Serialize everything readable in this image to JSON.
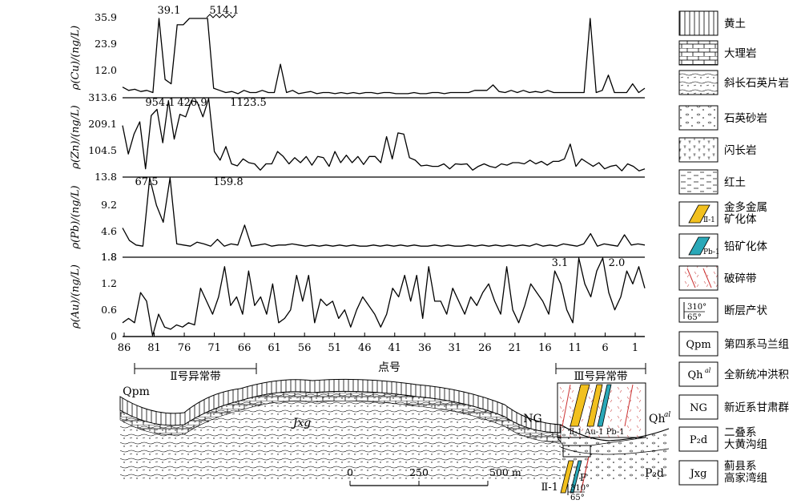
{
  "chart_data": {
    "type": "line",
    "xlabel": "点号",
    "x_ticks": [
      "86",
      "81",
      "76",
      "71",
      "66",
      "61",
      "56",
      "51",
      "46",
      "41",
      "36",
      "31",
      "26",
      "21",
      "16",
      "11",
      "6",
      "1"
    ],
    "panels": [
      {
        "id": "cu",
        "ylabel": "ρ(Cu)/(ng/L)",
        "y_ticks": [
          "35.9",
          "23.9",
          "12.0"
        ],
        "ylim": [
          0,
          35.9
        ],
        "annotations": [
          {
            "text": "39.1"
          },
          {
            "text": "514.1"
          }
        ],
        "values": [
          4.5,
          3,
          3.5,
          2.5,
          3,
          2,
          35.9,
          8,
          6,
          33,
          33,
          35.9,
          35.9,
          35.9,
          35.9,
          4,
          3,
          2,
          2.5,
          1.5,
          3,
          2,
          2,
          3,
          2,
          2,
          15,
          2,
          3,
          1.5,
          2,
          2.5,
          1.5,
          2,
          2,
          1.5,
          2,
          1.5,
          2,
          1.5,
          2,
          2,
          1.5,
          2,
          2,
          1.5,
          1.5,
          1.5,
          2,
          1.5,
          1.5,
          2,
          2,
          1.5,
          2,
          2,
          2,
          2,
          3,
          3,
          3,
          5.5,
          2.5,
          2,
          3,
          2,
          3,
          2,
          2.5,
          2,
          3,
          2,
          2,
          2,
          2,
          2,
          2,
          35.9,
          2,
          3,
          10,
          2,
          2,
          2,
          6,
          2,
          4
        ]
      },
      {
        "id": "zn",
        "ylabel": "ρ(Zn)/(ng/L)",
        "y_ticks": [
          "313.6",
          "209.1",
          "104.5"
        ],
        "ylim": [
          0,
          313.6
        ],
        "annotations": [
          {
            "text": "954.1"
          },
          {
            "text": "420.9"
          },
          {
            "text": "1123.5"
          }
        ],
        "values": [
          205,
          90,
          170,
          220,
          30,
          245,
          270,
          135,
          305,
          150,
          250,
          240,
          305,
          300,
          240,
          313.6,
          100,
          65,
          120,
          50,
          42,
          70,
          55,
          50,
          25,
          50,
          50,
          100,
          80,
          50,
          75,
          55,
          80,
          45,
          80,
          75,
          40,
          100,
          55,
          85,
          55,
          80,
          48,
          80,
          80,
          55,
          160,
          70,
          175,
          170,
          75,
          65,
          42,
          45,
          40,
          40,
          50,
          30,
          50,
          48,
          50,
          25,
          40,
          50,
          40,
          35,
          50,
          45,
          55,
          55,
          50,
          65,
          50,
          60,
          45,
          60,
          60,
          70,
          130,
          40,
          70,
          55,
          40,
          55,
          30,
          40,
          45,
          22,
          50,
          40,
          22,
          30
        ]
      },
      {
        "id": "pb",
        "ylabel": "ρ(Pb)/(ng/L)",
        "y_ticks": [
          "13.8",
          "9.2",
          "4.6",
          "1.8"
        ],
        "ylim": [
          0,
          13.8
        ],
        "annotations": [
          {
            "text": "67.5"
          },
          {
            "text": "159.8"
          }
        ],
        "values": [
          5,
          2.8,
          2,
          1.8,
          13.8,
          9,
          6,
          13.8,
          2.2,
          2,
          1.8,
          2.5,
          2.2,
          1.8,
          3,
          1.8,
          2.2,
          2,
          5.5,
          1.8,
          2,
          2.2,
          1.8,
          2,
          2,
          2.2,
          2,
          1.8,
          2,
          1.8,
          2,
          1.8,
          2,
          1.8,
          2,
          1.8,
          1.8,
          2,
          1.8,
          2,
          1.8,
          2,
          1.8,
          2,
          1.8,
          1.8,
          2,
          1.8,
          2,
          1.8,
          1.8,
          2,
          1.8,
          2,
          1.8,
          2,
          1.8,
          2,
          1.8,
          2,
          1.8,
          2.2,
          1.8,
          2,
          1.8,
          2.2,
          2,
          1.8,
          2.2,
          4,
          1.8,
          2.2,
          2,
          1.8,
          3.8,
          2,
          2.2,
          2
        ]
      },
      {
        "id": "au",
        "ylabel": "ρ(Au)/(ng/L)",
        "y_ticks": [
          "1.8",
          "1.2",
          "0.6",
          "0"
        ],
        "ylim": [
          0,
          1.8
        ],
        "annotations": [
          {
            "text": "3.1"
          },
          {
            "text": "2.0"
          }
        ],
        "values": [
          0.3,
          0.4,
          0.3,
          1,
          0.8,
          0,
          0.5,
          0.2,
          0.15,
          0.25,
          0.2,
          0.3,
          0.25,
          1.1,
          0.8,
          0.5,
          0.9,
          1.6,
          0.7,
          0.9,
          0.5,
          1.5,
          0.7,
          0.9,
          0.5,
          1.2,
          0.3,
          0.4,
          0.6,
          1.4,
          0.8,
          1.4,
          0.3,
          0.85,
          0.7,
          0.8,
          0.4,
          0.6,
          0.2,
          0.6,
          0.9,
          0.7,
          0.5,
          0.2,
          0.5,
          1.1,
          0.9,
          1.4,
          0.8,
          1.4,
          0.4,
          1.6,
          0.8,
          0.8,
          0.5,
          1.1,
          0.8,
          0.5,
          0.9,
          0.7,
          1.0,
          1.2,
          0.8,
          0.5,
          1.6,
          0.6,
          0.3,
          0.7,
          1.2,
          1.0,
          0.8,
          0.5,
          1.5,
          1.2,
          0.6,
          0.3,
          1.8,
          1.2,
          0.9,
          1.5,
          1.8,
          1.0,
          0.6,
          0.9,
          1.5,
          1.2,
          1.6,
          1.1
        ]
      }
    ],
    "anomaly_zones": [
      {
        "label": "Ⅱ号异常带"
      },
      {
        "label": "Ⅲ号异常带"
      }
    ],
    "section": {
      "labels": {
        "qpm": "Qpm",
        "jxg": "Jxg",
        "ng": "NG",
        "qhal": "Qh",
        "qhal_sup": "al",
        "p2d": "P₂d",
        "f": "F",
        "ii1_bottom": "Ⅱ-1",
        "orient_top": "310°",
        "orient_bot": "65°",
        "inset_labels": "Ⅱ-1 Au-1 Pb-1"
      },
      "scale_bar": {
        "ticks": [
          "0",
          "250",
          "500 m"
        ]
      }
    },
    "legend": [
      {
        "label": "黄土",
        "pattern": "loess"
      },
      {
        "label": "大理岩",
        "pattern": "marble"
      },
      {
        "label": "斜长石英片岩",
        "pattern": "schist"
      },
      {
        "label": "石英砂岩",
        "pattern": "sandstone"
      },
      {
        "label": "闪长岩",
        "pattern": "diorite"
      },
      {
        "label": "红土",
        "pattern": "redsoil"
      },
      {
        "label": "金多金属\n矿化体",
        "pattern": "au",
        "tag": "Ⅱ-1",
        "color": "#f2c01e"
      },
      {
        "label": "铅矿化体",
        "pattern": "pb",
        "tag": "Pb-1",
        "color": "#2aa8b8"
      },
      {
        "label": "破碎带",
        "pattern": "fracture"
      },
      {
        "label": "断层产状",
        "pattern": "fault",
        "tag1": "310°",
        "tag2": "65°"
      },
      {
        "label": "第四系马兰组",
        "pattern": "code",
        "code": "Qpm"
      },
      {
        "label": "全新统冲洪积",
        "pattern": "code",
        "code": "Qh",
        "sup": "al"
      },
      {
        "label": "新近系甘肃群",
        "pattern": "code",
        "code": "NG"
      },
      {
        "label": "二叠系\n大黄沟组",
        "pattern": "code",
        "code": "P₂d"
      },
      {
        "label": "蓟县系\n高家湾组",
        "pattern": "code",
        "code": "Jxg"
      }
    ]
  }
}
